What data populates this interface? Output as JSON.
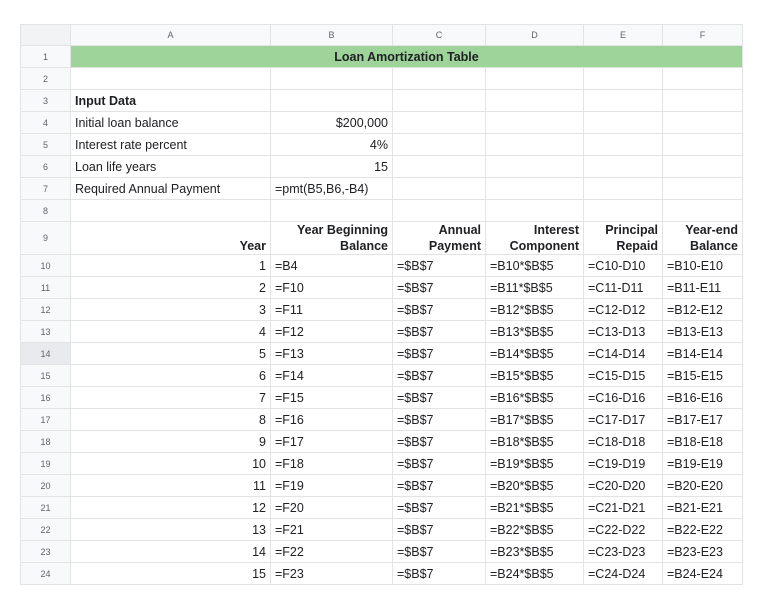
{
  "columns": [
    "A",
    "B",
    "C",
    "D",
    "E",
    "F"
  ],
  "title": "Loan Amortization Table",
  "input_section": {
    "heading": "Input Data",
    "rows": [
      {
        "label": "Initial loan balance",
        "value": "$200,000"
      },
      {
        "label": "Interest rate percent",
        "value": "4%"
      },
      {
        "label": "Loan life years",
        "value": "15"
      },
      {
        "label": "Required Annual Payment",
        "value": "=pmt(B5,B6,-B4)"
      }
    ]
  },
  "table_header": {
    "year": "Year",
    "year_beginning_1": "Year Beginning",
    "year_beginning_2": "Balance",
    "annual_1": "Annual",
    "annual_2": "Payment",
    "interest_1": "Interest",
    "interest_2": "Component",
    "principal_1": "Principal",
    "principal_2": "Repaid",
    "yearend_1": "Year-end",
    "yearend_2": "Balance"
  },
  "rows": [
    {
      "n": "10",
      "year": "1",
      "begin": "=B4",
      "payment": "=$B$7",
      "interest": "=B10*$B$5",
      "principal": "=C10-D10",
      "end": "=B10-E10"
    },
    {
      "n": "11",
      "year": "2",
      "begin": "=F10",
      "payment": "=$B$7",
      "interest": "=B11*$B$5",
      "principal": "=C11-D11",
      "end": "=B11-E11"
    },
    {
      "n": "12",
      "year": "3",
      "begin": "=F11",
      "payment": "=$B$7",
      "interest": "=B12*$B$5",
      "principal": "=C12-D12",
      "end": "=B12-E12"
    },
    {
      "n": "13",
      "year": "4",
      "begin": "=F12",
      "payment": "=$B$7",
      "interest": "=B13*$B$5",
      "principal": "=C13-D13",
      "end": "=B13-E13"
    },
    {
      "n": "14",
      "year": "5",
      "begin": "=F13",
      "payment": "=$B$7",
      "interest": "=B14*$B$5",
      "principal": "=C14-D14",
      "end": "=B14-E14"
    },
    {
      "n": "15",
      "year": "6",
      "begin": "=F14",
      "payment": "=$B$7",
      "interest": "=B15*$B$5",
      "principal": "=C15-D15",
      "end": "=B15-E15"
    },
    {
      "n": "16",
      "year": "7",
      "begin": "=F15",
      "payment": "=$B$7",
      "interest": "=B16*$B$5",
      "principal": "=C16-D16",
      "end": "=B16-E16"
    },
    {
      "n": "17",
      "year": "8",
      "begin": "=F16",
      "payment": "=$B$7",
      "interest": "=B17*$B$5",
      "principal": "=C17-D17",
      "end": "=B17-E17"
    },
    {
      "n": "18",
      "year": "9",
      "begin": "=F17",
      "payment": "=$B$7",
      "interest": "=B18*$B$5",
      "principal": "=C18-D18",
      "end": "=B18-E18"
    },
    {
      "n": "19",
      "year": "10",
      "begin": "=F18",
      "payment": "=$B$7",
      "interest": "=B19*$B$5",
      "principal": "=C19-D19",
      "end": "=B19-E19"
    },
    {
      "n": "20",
      "year": "11",
      "begin": "=F19",
      "payment": "=$B$7",
      "interest": "=B20*$B$5",
      "principal": "=C20-D20",
      "end": "=B20-E20"
    },
    {
      "n": "21",
      "year": "12",
      "begin": "=F20",
      "payment": "=$B$7",
      "interest": "=B21*$B$5",
      "principal": "=C21-D21",
      "end": "=B21-E21"
    },
    {
      "n": "22",
      "year": "13",
      "begin": "=F21",
      "payment": "=$B$7",
      "interest": "=B22*$B$5",
      "principal": "=C22-D22",
      "end": "=B22-E22"
    },
    {
      "n": "23",
      "year": "14",
      "begin": "=F22",
      "payment": "=$B$7",
      "interest": "=B23*$B$5",
      "principal": "=C23-D23",
      "end": "=B23-E23"
    },
    {
      "n": "24",
      "year": "15",
      "begin": "=F23",
      "payment": "=$B$7",
      "interest": "=B24*$B$5",
      "principal": "=C24-D24",
      "end": "=B24-E24"
    }
  ],
  "colors": {
    "title_fill": "#9ed39a",
    "header_bg": "#f8f9fa",
    "grid": "#e2e3e3"
  }
}
